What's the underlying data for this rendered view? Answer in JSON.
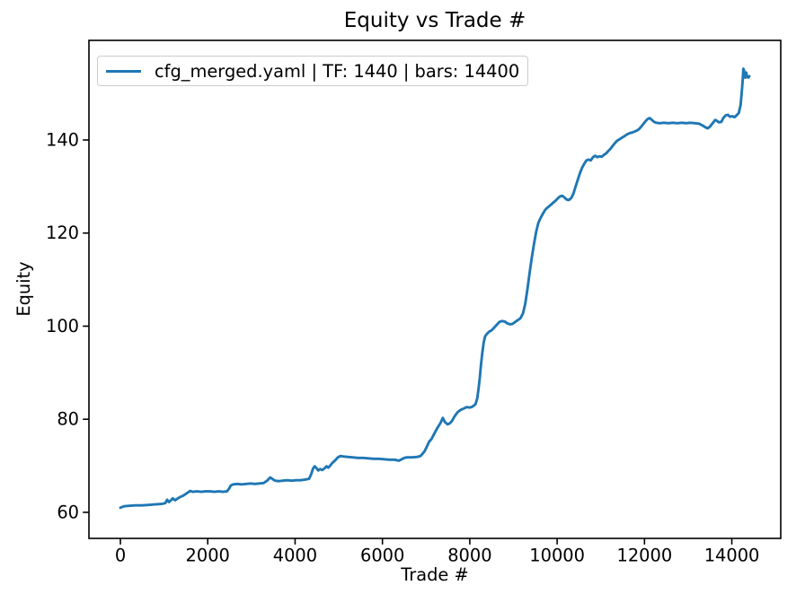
{
  "figure": {
    "title": "Equity vs Trade #",
    "xlabel": "Trade #",
    "ylabel": "Equity",
    "legend": {
      "label": "cfg_merged.yaml | TF: 1440 | bars: 14400",
      "position": "upper-left",
      "line_color": "#1f77b4",
      "border_color": "#cccccc"
    }
  },
  "chart_data": {
    "type": "line",
    "title": "Equity vs Trade #",
    "xlabel": "Trade #",
    "ylabel": "Equity",
    "xlim": [
      -720,
      15120
    ],
    "ylim": [
      54.4,
      161.4
    ],
    "xticks": [
      0,
      2000,
      4000,
      6000,
      8000,
      10000,
      12000,
      14000
    ],
    "yticks": [
      60,
      80,
      100,
      120,
      140
    ],
    "grid": false,
    "legend_position": "upper left",
    "line_width": 2.9,
    "series": [
      {
        "name": "cfg_merged.yaml | TF: 1440 | bars: 14400",
        "color": "#1f77b4",
        "points": [
          [
            0,
            61.0
          ],
          [
            80,
            61.3
          ],
          [
            200,
            61.4
          ],
          [
            350,
            61.5
          ],
          [
            500,
            61.5
          ],
          [
            650,
            61.6
          ],
          [
            800,
            61.7
          ],
          [
            950,
            61.8
          ],
          [
            1030,
            62.0
          ],
          [
            1070,
            62.7
          ],
          [
            1110,
            62.2
          ],
          [
            1150,
            62.5
          ],
          [
            1200,
            63.0
          ],
          [
            1250,
            62.6
          ],
          [
            1300,
            62.9
          ],
          [
            1370,
            63.3
          ],
          [
            1440,
            63.6
          ],
          [
            1520,
            64.1
          ],
          [
            1600,
            64.6
          ],
          [
            1660,
            64.4
          ],
          [
            1750,
            64.5
          ],
          [
            1850,
            64.4
          ],
          [
            1950,
            64.5
          ],
          [
            2050,
            64.5
          ],
          [
            2150,
            64.4
          ],
          [
            2250,
            64.5
          ],
          [
            2350,
            64.4
          ],
          [
            2440,
            64.5
          ],
          [
            2490,
            65.1
          ],
          [
            2530,
            65.8
          ],
          [
            2580,
            66.0
          ],
          [
            2680,
            66.1
          ],
          [
            2780,
            66.0
          ],
          [
            2880,
            66.1
          ],
          [
            2980,
            66.2
          ],
          [
            3080,
            66.1
          ],
          [
            3180,
            66.2
          ],
          [
            3280,
            66.3
          ],
          [
            3360,
            66.8
          ],
          [
            3430,
            67.5
          ],
          [
            3490,
            67.1
          ],
          [
            3540,
            66.8
          ],
          [
            3620,
            66.7
          ],
          [
            3720,
            66.8
          ],
          [
            3820,
            66.9
          ],
          [
            3920,
            66.8
          ],
          [
            4020,
            66.9
          ],
          [
            4120,
            66.9
          ],
          [
            4220,
            67.0
          ],
          [
            4320,
            67.2
          ],
          [
            4370,
            68.2
          ],
          [
            4410,
            69.4
          ],
          [
            4450,
            69.9
          ],
          [
            4490,
            69.5
          ],
          [
            4530,
            69.0
          ],
          [
            4570,
            69.3
          ],
          [
            4620,
            69.1
          ],
          [
            4670,
            69.4
          ],
          [
            4720,
            69.9
          ],
          [
            4760,
            69.6
          ],
          [
            4800,
            70.0
          ],
          [
            4860,
            70.7
          ],
          [
            4920,
            71.2
          ],
          [
            4980,
            71.8
          ],
          [
            5040,
            72.1
          ],
          [
            5100,
            72.0
          ],
          [
            5200,
            71.9
          ],
          [
            5320,
            71.8
          ],
          [
            5440,
            71.7
          ],
          [
            5560,
            71.7
          ],
          [
            5680,
            71.6
          ],
          [
            5800,
            71.5
          ],
          [
            5920,
            71.5
          ],
          [
            6040,
            71.4
          ],
          [
            6160,
            71.3
          ],
          [
            6280,
            71.3
          ],
          [
            6380,
            71.1
          ],
          [
            6440,
            71.4
          ],
          [
            6500,
            71.7
          ],
          [
            6560,
            71.8
          ],
          [
            6680,
            71.8
          ],
          [
            6800,
            71.9
          ],
          [
            6870,
            72.1
          ],
          [
            6920,
            72.6
          ],
          [
            6970,
            73.2
          ],
          [
            7020,
            74.2
          ],
          [
            7070,
            75.2
          ],
          [
            7120,
            75.7
          ],
          [
            7170,
            76.6
          ],
          [
            7220,
            77.5
          ],
          [
            7270,
            78.3
          ],
          [
            7330,
            79.2
          ],
          [
            7380,
            80.3
          ],
          [
            7430,
            79.4
          ],
          [
            7490,
            78.9
          ],
          [
            7540,
            79.1
          ],
          [
            7590,
            79.6
          ],
          [
            7650,
            80.6
          ],
          [
            7720,
            81.5
          ],
          [
            7790,
            82.0
          ],
          [
            7860,
            82.3
          ],
          [
            7930,
            82.6
          ],
          [
            8000,
            82.5
          ],
          [
            8060,
            82.7
          ],
          [
            8130,
            83.2
          ],
          [
            8170,
            84.5
          ],
          [
            8200,
            86.5
          ],
          [
            8230,
            89.0
          ],
          [
            8260,
            92.0
          ],
          [
            8290,
            94.5
          ],
          [
            8320,
            96.5
          ],
          [
            8350,
            97.8
          ],
          [
            8390,
            98.3
          ],
          [
            8440,
            98.8
          ],
          [
            8500,
            99.1
          ],
          [
            8560,
            99.7
          ],
          [
            8620,
            100.3
          ],
          [
            8680,
            100.9
          ],
          [
            8740,
            101.1
          ],
          [
            8800,
            101.0
          ],
          [
            8860,
            100.6
          ],
          [
            8920,
            100.4
          ],
          [
            8980,
            100.5
          ],
          [
            9040,
            100.9
          ],
          [
            9100,
            101.3
          ],
          [
            9160,
            101.7
          ],
          [
            9220,
            102.8
          ],
          [
            9270,
            104.8
          ],
          [
            9320,
            108.0
          ],
          [
            9370,
            111.5
          ],
          [
            9420,
            114.7
          ],
          [
            9470,
            117.6
          ],
          [
            9520,
            120.3
          ],
          [
            9570,
            122.2
          ],
          [
            9620,
            123.2
          ],
          [
            9670,
            124.1
          ],
          [
            9720,
            124.9
          ],
          [
            9770,
            125.4
          ],
          [
            9820,
            125.8
          ],
          [
            9870,
            126.2
          ],
          [
            9920,
            126.6
          ],
          [
            9970,
            127.0
          ],
          [
            10020,
            127.5
          ],
          [
            10070,
            127.9
          ],
          [
            10120,
            128.0
          ],
          [
            10170,
            127.6
          ],
          [
            10220,
            127.2
          ],
          [
            10270,
            127.1
          ],
          [
            10320,
            127.5
          ],
          [
            10370,
            128.4
          ],
          [
            10420,
            129.9
          ],
          [
            10470,
            131.4
          ],
          [
            10520,
            132.8
          ],
          [
            10570,
            134.0
          ],
          [
            10620,
            134.9
          ],
          [
            10670,
            135.6
          ],
          [
            10720,
            135.8
          ],
          [
            10770,
            135.6
          ],
          [
            10820,
            136.3
          ],
          [
            10870,
            136.6
          ],
          [
            10920,
            136.3
          ],
          [
            10970,
            136.5
          ],
          [
            11020,
            136.4
          ],
          [
            11070,
            136.8
          ],
          [
            11120,
            137.1
          ],
          [
            11170,
            137.6
          ],
          [
            11220,
            138.1
          ],
          [
            11270,
            138.7
          ],
          [
            11320,
            139.3
          ],
          [
            11370,
            139.8
          ],
          [
            11420,
            140.1
          ],
          [
            11470,
            140.4
          ],
          [
            11520,
            140.7
          ],
          [
            11570,
            141.0
          ],
          [
            11620,
            141.3
          ],
          [
            11670,
            141.5
          ],
          [
            11720,
            141.6
          ],
          [
            11770,
            141.8
          ],
          [
            11820,
            142.0
          ],
          [
            11870,
            142.3
          ],
          [
            11920,
            142.8
          ],
          [
            11970,
            143.4
          ],
          [
            12020,
            144.0
          ],
          [
            12070,
            144.5
          ],
          [
            12120,
            144.7
          ],
          [
            12170,
            144.3
          ],
          [
            12220,
            143.9
          ],
          [
            12270,
            143.7
          ],
          [
            12350,
            143.6
          ],
          [
            12450,
            143.7
          ],
          [
            12550,
            143.6
          ],
          [
            12650,
            143.7
          ],
          [
            12750,
            143.6
          ],
          [
            12850,
            143.7
          ],
          [
            12950,
            143.6
          ],
          [
            13050,
            143.7
          ],
          [
            13150,
            143.6
          ],
          [
            13250,
            143.5
          ],
          [
            13330,
            143.1
          ],
          [
            13400,
            142.7
          ],
          [
            13450,
            142.5
          ],
          [
            13500,
            142.9
          ],
          [
            13560,
            143.6
          ],
          [
            13620,
            144.3
          ],
          [
            13660,
            144.1
          ],
          [
            13700,
            143.8
          ],
          [
            13760,
            143.9
          ],
          [
            13810,
            144.8
          ],
          [
            13860,
            145.3
          ],
          [
            13910,
            145.4
          ],
          [
            13960,
            145.0
          ],
          [
            14010,
            145.1
          ],
          [
            14060,
            144.9
          ],
          [
            14110,
            145.3
          ],
          [
            14160,
            145.8
          ],
          [
            14200,
            147.5
          ],
          [
            14230,
            150.5
          ],
          [
            14250,
            153.0
          ],
          [
            14265,
            155.3
          ],
          [
            14280,
            154.9
          ],
          [
            14295,
            153.6
          ],
          [
            14310,
            153.4
          ],
          [
            14330,
            154.5
          ],
          [
            14345,
            153.8
          ],
          [
            14360,
            153.5
          ],
          [
            14380,
            153.4
          ],
          [
            14400,
            153.7
          ]
        ]
      }
    ]
  }
}
